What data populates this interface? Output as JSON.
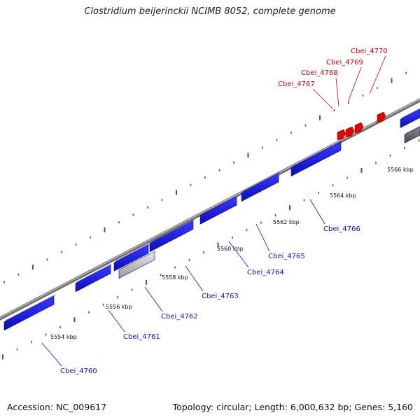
{
  "title": "Clostridium beijerinckii NCIMB 8052, complete genome",
  "footer": {
    "accession": "Accession: NC_009617",
    "stats": "Topology: circular; Length: 6,000,632 bp; Genes: 5,160"
  },
  "colors": {
    "gene_plus": "#1a1adc",
    "gene_highlight": "#e00000",
    "label_plus": "#1010b0",
    "label_highlight": "#c00000",
    "backbone": "#8a8a8a",
    "tick": "#1f7a1f"
  },
  "kbp_marks": [
    "5554 kbp",
    "5556 kbp",
    "5558 kbp",
    "5560 kbp",
    "5562 kbp",
    "5564 kbp",
    "5566 kbp"
  ],
  "genes_plus": [
    "Cbei_4760",
    "Cbei_4761",
    "Cbei_4762",
    "Cbei_4763",
    "Cbei_4764",
    "Cbei_4765",
    "Cbei_4766"
  ],
  "genes_highlight": [
    "Cbei_4767",
    "Cbei_4768",
    "Cbei_4769",
    "Cbei_4770"
  ]
}
